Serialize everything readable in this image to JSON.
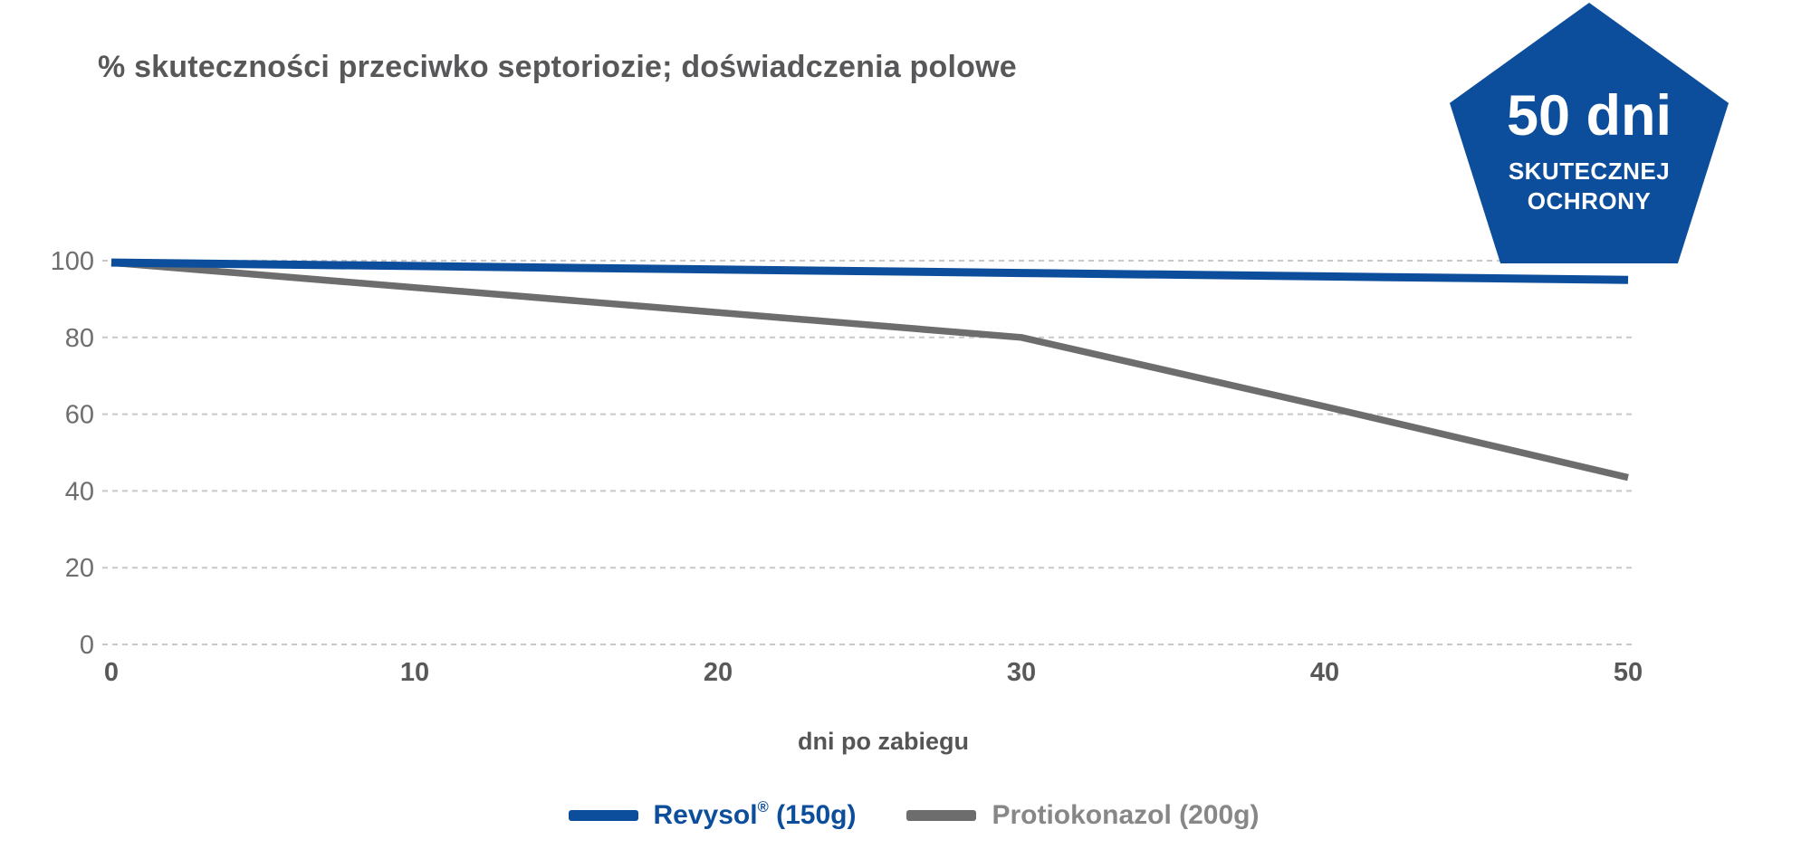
{
  "title": "% skuteczności przeciwko septoriozie; doświadczenia polowe",
  "badge": {
    "value": "50 dni",
    "line1": "SKUTECZNEJ",
    "line2": "OCHRONY",
    "color": "#0d4e9c"
  },
  "chart_data": {
    "type": "line",
    "title": "% skuteczności przeciwko septoriozie; doświadczenia polowe",
    "xlabel": "dni po zabiegu",
    "ylabel": "",
    "x": [
      0,
      10,
      20,
      30,
      40,
      50
    ],
    "xticks": [
      0,
      10,
      20,
      30,
      40,
      50
    ],
    "yticks": [
      0,
      20,
      40,
      60,
      80,
      100
    ],
    "xlim": [
      0,
      50
    ],
    "ylim": [
      0,
      100
    ],
    "grid": "horizontal-dashed",
    "legend_position": "bottom",
    "series": [
      {
        "name": "Revysol® (150g)",
        "color": "#0d4e9c",
        "values": [
          99.5,
          98.6,
          97.7,
          96.8,
          95.9,
          95
        ]
      },
      {
        "name": "Protiokonazol (200g)",
        "color": "#6d6d6d",
        "values": [
          99.5,
          93,
          86.5,
          80,
          62,
          43.5
        ]
      }
    ]
  },
  "legend": {
    "items": [
      {
        "pre": "Revysol",
        "sup": "®",
        "post": " (150g)"
      },
      {
        "pre": "Protiokonazol",
        "sup": "",
        "post": " (200g)",
        "text_color": "#878787"
      }
    ]
  },
  "axis_style": {
    "grid_color": "#c8c8c8",
    "ytick_color": "#6e6e6e",
    "xtick_color": "#595959",
    "xlabel_color": "#555555"
  }
}
